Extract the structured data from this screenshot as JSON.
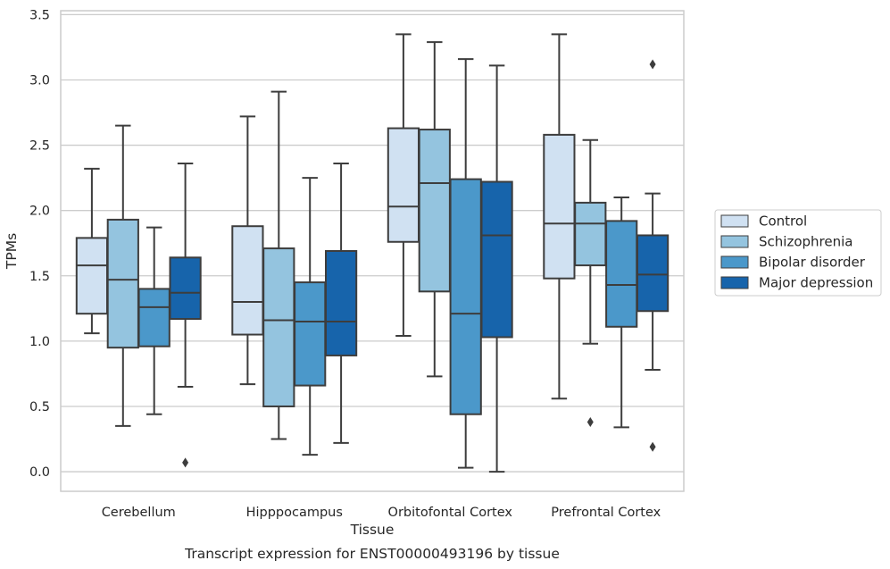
{
  "chart_data": {
    "type": "box",
    "caption": "Transcript expression for ENST00000493196 by tissue",
    "xlabel": "Tissue",
    "ylabel": "TPMs",
    "ylim": [
      -0.15,
      3.53
    ],
    "yticks": [
      "0.0",
      "0.5",
      "1.0",
      "1.5",
      "2.0",
      "2.5",
      "3.0",
      "3.5"
    ],
    "grid": true,
    "legend_position": "right",
    "categories": [
      "Cerebellum",
      "Hipppocampus",
      "Orbitofontal Cortex",
      "Prefrontal Cortex"
    ],
    "series": [
      {
        "name": "Control",
        "color": "#d0e1f2",
        "boxes": [
          {
            "whislo": 1.06,
            "q1": 1.21,
            "med": 1.58,
            "q3": 1.79,
            "whishi": 2.32,
            "fliers": []
          },
          {
            "whislo": 0.67,
            "q1": 1.05,
            "med": 1.3,
            "q3": 1.88,
            "whishi": 2.72,
            "fliers": []
          },
          {
            "whislo": 1.04,
            "q1": 1.76,
            "med": 2.03,
            "q3": 2.63,
            "whishi": 3.35,
            "fliers": []
          },
          {
            "whislo": 0.56,
            "q1": 1.48,
            "med": 1.9,
            "q3": 2.58,
            "whishi": 3.35,
            "fliers": []
          }
        ]
      },
      {
        "name": "Schizophrenia",
        "color": "#94c4df",
        "boxes": [
          {
            "whislo": 0.35,
            "q1": 0.95,
            "med": 1.47,
            "q3": 1.93,
            "whishi": 2.65,
            "fliers": []
          },
          {
            "whislo": 0.25,
            "q1": 0.5,
            "med": 1.16,
            "q3": 1.71,
            "whishi": 2.91,
            "fliers": []
          },
          {
            "whislo": 0.73,
            "q1": 1.38,
            "med": 2.21,
            "q3": 2.62,
            "whishi": 3.29,
            "fliers": []
          },
          {
            "whislo": 0.98,
            "q1": 1.58,
            "med": 1.9,
            "q3": 2.06,
            "whishi": 2.54,
            "fliers": [
              0.38
            ]
          }
        ]
      },
      {
        "name": "Bipolar disorder",
        "color": "#4b98ca",
        "boxes": [
          {
            "whislo": 0.44,
            "q1": 0.96,
            "med": 1.26,
            "q3": 1.4,
            "whishi": 1.87,
            "fliers": []
          },
          {
            "whislo": 0.13,
            "q1": 0.66,
            "med": 1.15,
            "q3": 1.45,
            "whishi": 2.25,
            "fliers": []
          },
          {
            "whislo": 0.03,
            "q1": 0.44,
            "med": 1.21,
            "q3": 2.24,
            "whishi": 3.16,
            "fliers": []
          },
          {
            "whislo": 0.34,
            "q1": 1.11,
            "med": 1.43,
            "q3": 1.92,
            "whishi": 2.1,
            "fliers": []
          }
        ]
      },
      {
        "name": "Major depression",
        "color": "#1764ab",
        "boxes": [
          {
            "whislo": 0.65,
            "q1": 1.17,
            "med": 1.37,
            "q3": 1.64,
            "whishi": 2.36,
            "fliers": [
              0.07
            ]
          },
          {
            "whislo": 0.22,
            "q1": 0.89,
            "med": 1.15,
            "q3": 1.69,
            "whishi": 2.36,
            "fliers": []
          },
          {
            "whislo": 0.0,
            "q1": 1.03,
            "med": 1.81,
            "q3": 2.22,
            "whishi": 3.11,
            "fliers": []
          },
          {
            "whislo": 0.78,
            "q1": 1.23,
            "med": 1.51,
            "q3": 1.81,
            "whishi": 2.13,
            "fliers": [
              0.19,
              3.12
            ]
          }
        ]
      }
    ]
  }
}
